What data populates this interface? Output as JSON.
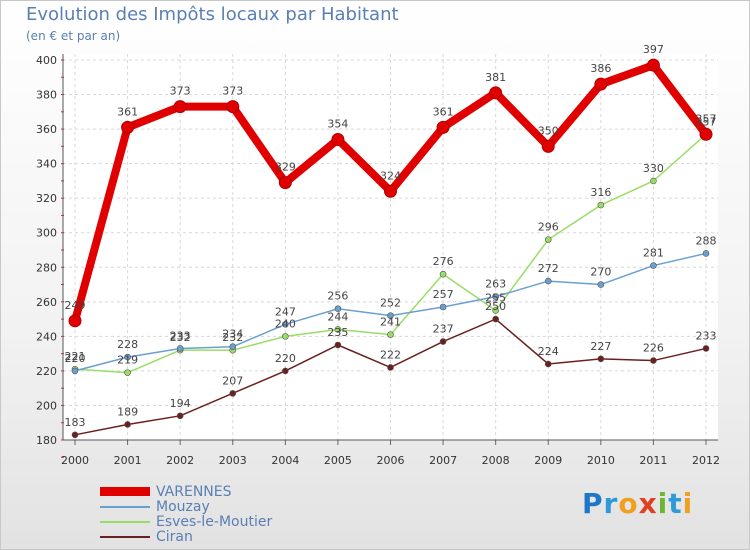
{
  "chart_data": {
    "type": "line",
    "title": "Evolution des Impôts locaux par Habitant",
    "subtitle": "(en € et par an)",
    "xlabel": "",
    "ylabel": "",
    "ylim": [
      180,
      400
    ],
    "yticks": [
      180,
      200,
      220,
      240,
      260,
      280,
      300,
      320,
      340,
      360,
      380,
      400
    ],
    "categories": [
      "2000",
      "2001",
      "2002",
      "2003",
      "2004",
      "2005",
      "2006",
      "2007",
      "2008",
      "2009",
      "2010",
      "2011",
      "2012"
    ],
    "grid": true,
    "legend_position": "bottom-left",
    "series": [
      {
        "name": "VARENNES",
        "color": "#e00000",
        "values": [
          249,
          361,
          373,
          373,
          329,
          354,
          324,
          361,
          381,
          350,
          386,
          397,
          357
        ]
      },
      {
        "name": "Mouzay",
        "color": "#6aa0d0",
        "values": [
          220,
          228,
          233,
          234,
          247,
          256,
          252,
          257,
          263,
          272,
          270,
          281,
          288
        ]
      },
      {
        "name": "Esves-le-Moutier",
        "color": "#99dd66",
        "values": [
          221,
          219,
          232,
          232,
          240,
          244,
          241,
          276,
          255,
          296,
          316,
          330,
          357
        ]
      },
      {
        "name": "Ciran",
        "color": "#6b2020",
        "values": [
          183,
          189,
          194,
          207,
          220,
          235,
          222,
          237,
          250,
          224,
          227,
          226,
          233
        ]
      }
    ]
  },
  "logo": {
    "letters": [
      "P",
      "r",
      "o",
      "x",
      "i",
      "t",
      "i"
    ]
  }
}
